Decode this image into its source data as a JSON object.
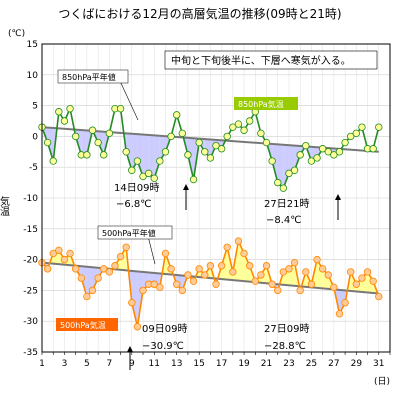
{
  "chart_data": {
    "type": "line",
    "title": "つくばにおける12月の高層気温の推移(09時と21時)",
    "unit_label": "(℃)",
    "ylabel": "気温",
    "xlabel": "(日)",
    "ylim": [
      -35,
      15
    ],
    "y_ticks": [
      15,
      10,
      5,
      0,
      -5,
      -10,
      -15,
      -20,
      -25,
      -30,
      -35
    ],
    "x_range": [
      1,
      32
    ],
    "x_ticks": [
      1,
      3,
      5,
      7,
      9,
      11,
      13,
      15,
      17,
      19,
      21,
      23,
      25,
      27,
      29,
      31
    ],
    "grid": true,
    "note": "中旬と下旬後半に、下層へ寒気が入る。",
    "series": [
      {
        "name": "850hPa気温",
        "color": "#228b22",
        "marker_color": "#ffff99",
        "normal_name": "850hPa平年値",
        "shade_below_color": "#ccccff",
        "values": [
          1.5,
          -1.0,
          -4.0,
          4.0,
          2.5,
          4.5,
          0.0,
          -3.0,
          -3.0,
          1.0,
          -1.0,
          -3.0,
          0.5,
          4.5,
          4.5,
          -2.5,
          -5.5,
          -4.0,
          -6.5,
          -6.0,
          -6.8,
          -4.0,
          -2.5,
          0.0,
          3.5,
          0.5,
          -3.0,
          -7.0,
          -1.0,
          -2.5,
          -3.5,
          -1.5,
          -2.0,
          0.0,
          1.5,
          2.0,
          1.0,
          2.5,
          4.0,
          0.5,
          -1.0,
          -4.0,
          -7.5,
          -8.4,
          -6.0,
          -5.5,
          -3.0,
          -1.5,
          -4.0,
          -3.5,
          -2.0,
          -2.5,
          -3.0,
          -2.5,
          -1.0,
          0.0,
          0.5,
          1.5,
          -2.0,
          -2.0,
          1.5
        ],
        "normal": [
          1.5,
          -2.5
        ]
      },
      {
        "name": "500hPa気温",
        "color": "#ff8800",
        "marker_color": "#ffcc99",
        "normal_name": "500hPa平年値",
        "shade_above_color": "#ffff99",
        "shade_below_color": "#ccccff",
        "values": [
          -20.5,
          -21.5,
          -19.0,
          -18.5,
          -20.0,
          -19.0,
          -21.5,
          -23.0,
          -26.0,
          -25.0,
          -23.0,
          -21.5,
          -22.0,
          -21.0,
          -19.5,
          -18.0,
          -27.0,
          -30.9,
          -25.0,
          -24.0,
          -24.0,
          -24.5,
          -19.0,
          -21.5,
          -24.0,
          -25.0,
          -22.5,
          -23.5,
          -21.5,
          -22.5,
          -21.0,
          -24.0,
          -21.0,
          -18.0,
          -22.0,
          -17.0,
          -19.0,
          -21.0,
          -23.5,
          -22.5,
          -21.0,
          -24.0,
          -25.0,
          -22.0,
          -21.5,
          -20.5,
          -25.0,
          -22.0,
          -24.0,
          -20.0,
          -21.5,
          -22.5,
          -24.5,
          -28.8,
          -27.0,
          -22.0,
          -24.0,
          -23.0,
          -22.0,
          -23.5,
          -26.0
        ],
        "normal": [
          -20.5,
          -25.5
        ]
      }
    ],
    "annotations": [
      {
        "date": "14日09時",
        "value": "−6.8℃"
      },
      {
        "date": "27日21時",
        "value": "−8.4℃"
      },
      {
        "date": "09日09時",
        "value": "−30.9℃"
      },
      {
        "date": "27日09時",
        "value": "−28.8℃"
      }
    ]
  }
}
